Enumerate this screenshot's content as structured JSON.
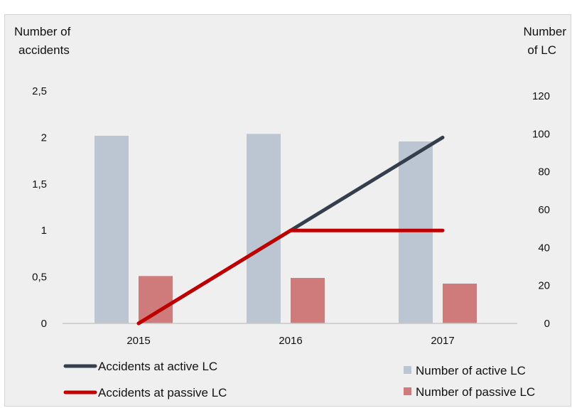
{
  "chart_data": {
    "type": "bar",
    "categories": [
      "2015",
      "2016",
      "2017"
    ],
    "y_left": {
      "label_line1": "Number of",
      "label_line2": "accidents",
      "range": [
        0,
        2.5
      ],
      "ticks": [
        "0",
        "0,5",
        "1",
        "1,5",
        "2",
        "2,5"
      ]
    },
    "y_right": {
      "label_line1": "Number",
      "label_line2": "of LC",
      "range": [
        0,
        120
      ],
      "ticks": [
        "0",
        "20",
        "40",
        "60",
        "80",
        "100",
        "120"
      ]
    },
    "series": [
      {
        "name": "Number of active LC",
        "kind": "bar",
        "axis": "right",
        "color": "#bcc6d2",
        "values": [
          99,
          100,
          96
        ]
      },
      {
        "name": "Number of passive LC",
        "kind": "bar",
        "axis": "right",
        "color": "#cf7b7b",
        "values": [
          25,
          24,
          21
        ]
      },
      {
        "name": "Accidents at active LC",
        "kind": "line",
        "axis": "left",
        "color": "#343e4d",
        "values": [
          0,
          1,
          2
        ]
      },
      {
        "name": "Accidents at passive LC",
        "kind": "line",
        "axis": "left",
        "color": "#c00000",
        "values": [
          0,
          1,
          1
        ]
      }
    ],
    "legend": [
      {
        "name": "Accidents at active LC",
        "kind": "line",
        "color": "#343e4d"
      },
      {
        "name": "Number of active LC",
        "kind": "bar",
        "color": "#bcc6d2"
      },
      {
        "name": "Accidents at passive LC",
        "kind": "line",
        "color": "#c00000"
      },
      {
        "name": "Number of passive LC",
        "kind": "bar",
        "color": "#cf7b7b"
      }
    ],
    "grid": false,
    "legend_position": "bottom"
  }
}
